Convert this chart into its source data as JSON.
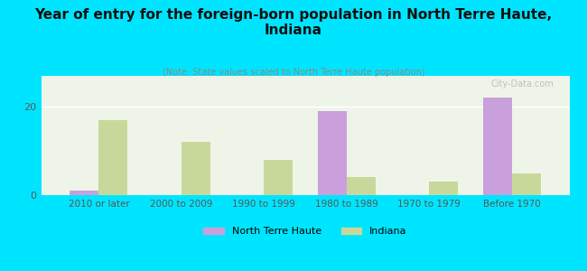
{
  "title": "Year of entry for the foreign-born population in North Terre Haute,\nIndiana",
  "subtitle": "(Note: State values scaled to North Terre Haute population)",
  "categories": [
    "2010 or later",
    "2000 to 2009",
    "1990 to 1999",
    "1980 to 1989",
    "1970 to 1979",
    "Before 1970"
  ],
  "north_terre_haute": [
    1,
    0,
    0,
    19,
    0,
    22
  ],
  "indiana": [
    17,
    12,
    8,
    4,
    3,
    5
  ],
  "color_nth": "#c9a0dc",
  "color_indiana": "#c8d89a",
  "background_outer": "#00e5ff",
  "background_plot": "#eef5e8",
  "ylabel_tick": 20,
  "ylim": [
    0,
    27
  ],
  "bar_width": 0.35,
  "watermark": "City-Data.com",
  "legend_nth": "North Terre Haute",
  "legend_indiana": "Indiana"
}
